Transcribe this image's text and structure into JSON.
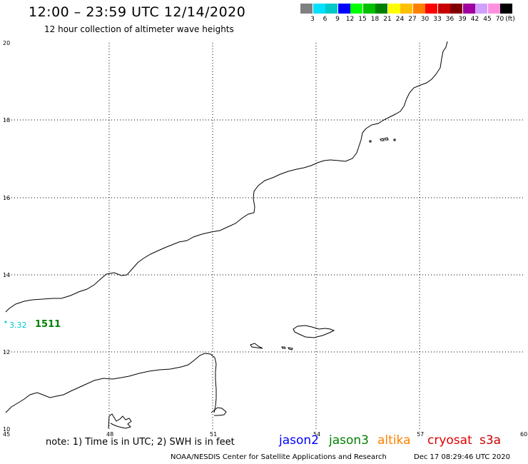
{
  "header": {
    "title": "12:00 – 23:59 UTC 12/14/2020",
    "subtitle": "12 hour collection of altimeter wave heights"
  },
  "scale": {
    "colors": [
      "#808080",
      "#00e0ff",
      "#00c8c8",
      "#0000ff",
      "#00ff00",
      "#00c000",
      "#008000",
      "#ffff00",
      "#ffc000",
      "#ff8000",
      "#ff0000",
      "#c80000",
      "#800000",
      "#a000a0",
      "#d0a0ff",
      "#ff90e0",
      "#000000"
    ],
    "labels": [
      "3",
      "6",
      "9",
      "12",
      "15",
      "18",
      "21",
      "24",
      "27",
      "30",
      "33",
      "36",
      "39",
      "42",
      "45",
      "70"
    ],
    "unit": "(ft)"
  },
  "map": {
    "lat_labels": [
      "20",
      "18",
      "16",
      "14",
      "12",
      "10"
    ],
    "lon_labels": [
      "45",
      "48",
      "51",
      "54",
      "57",
      "60"
    ],
    "observations": [
      {
        "value": "3.32",
        "color": "#00c8c8"
      },
      {
        "value": "1511",
        "color": "#008000"
      }
    ]
  },
  "footer": {
    "note": "note: 1) Time is in UTC; 2) SWH is in feet",
    "satellites": [
      {
        "name": "jason2",
        "color": "#0000ff"
      },
      {
        "name": "jason3",
        "color": "#008000"
      },
      {
        "name": "altika",
        "color": "#ff8000"
      },
      {
        "name": "cryosat",
        "color": "#e00000"
      },
      {
        "name": "s3a",
        "color": "#c80000"
      }
    ],
    "credit": "NOAA/NESDIS Center for Satellite Applications and Research",
    "timestamp": "Dec 17 08:29:46 UTC 2020"
  }
}
